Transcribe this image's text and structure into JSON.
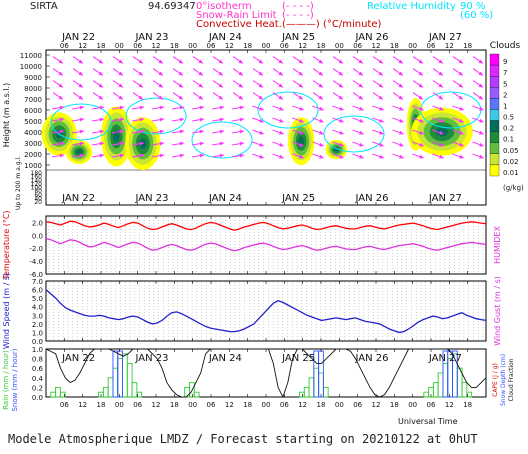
{
  "header": {
    "site": "SIRTA",
    "coords": "94.69347",
    "legend_left": [
      {
        "label": "0°isotherm",
        "sym": "(- - - -)",
        "color": "#ff33cc"
      },
      {
        "label": "Snow-Rain Limit",
        "sym": "(- - - -)",
        "color": "#ff33cc"
      },
      {
        "label": "Convective Heat.",
        "sym": "(———) (°C/minute)",
        "color": "#cc0000"
      }
    ],
    "legend_right": [
      {
        "label": "Relative Humidity",
        "value": "90 %",
        "color": "#00e5ff"
      },
      {
        "label": "",
        "value": "(60 %)",
        "color": "#00e5ff"
      }
    ],
    "clouds_title": "Clouds"
  },
  "days": [
    "JAN 22",
    "JAN 23",
    "JAN 24",
    "JAN 25",
    "JAN 26",
    "JAN 27"
  ],
  "hours": [
    "06",
    "12",
    "18",
    "00",
    "06",
    "12",
    "18",
    "00",
    "06",
    "12",
    "18",
    "00",
    "06",
    "12",
    "18",
    "00",
    "06",
    "12",
    "18",
    "00",
    "06",
    "12",
    "18"
  ],
  "footer": "Modele Atmospherique LMDZ / Forecast starting on 20210122 at 0hUT",
  "universal_time": "Universal Time",
  "chart_data": [
    {
      "type": "heatmap",
      "ylabel": "Height (m a.s.l.)",
      "ylabel2": "Up to 200 m a.g.l.",
      "yticks": [
        1000,
        2000,
        3000,
        4000,
        5000,
        6000,
        7000,
        8000,
        9000,
        10000,
        11000
      ],
      "yticks_low": [
        20,
        40,
        60,
        80,
        100,
        120,
        140,
        160,
        180
      ],
      "colorbar": {
        "title": "Clouds",
        "unit": "(g/kg)",
        "labels": [
          "0.01",
          "0.02",
          "0.05",
          "0.1",
          "0.2",
          "0.5",
          "1",
          "2",
          "5",
          "7",
          "9"
        ],
        "colors": [
          "#ffff00",
          "#c8e632",
          "#5fbf3c",
          "#1e8c3c",
          "#006e5a",
          "#3cc8e6",
          "#5a78ff",
          "#9b5aff",
          "#b43cff",
          "#dc28ff",
          "#ff00ff"
        ]
      }
    },
    {
      "type": "line",
      "ylabel": "Temperature (°C)",
      "ylabel2": "HUMIDEX",
      "yticks": [
        "2.0",
        "0.0",
        "-2.0",
        "-4.0",
        "-6.0"
      ],
      "ylim": [
        -6,
        3
      ],
      "series": [
        {
          "color": "#ff0000",
          "values": [
            2.1,
            2.0,
            1.8,
            1.6,
            1.9,
            2.2,
            2.1,
            1.8,
            1.5,
            1.3,
            1.4,
            1.6,
            1.9,
            1.7,
            1.4,
            1.2,
            1.5,
            1.8,
            2.0,
            1.9,
            1.5,
            1.1,
            0.9,
            1.0,
            1.3,
            1.6,
            1.8,
            1.6,
            1.3,
            1.0,
            0.9,
            1.1,
            1.5,
            1.8,
            2.0,
            1.9,
            1.6,
            1.3,
            1.0,
            0.8,
            1.0,
            1.3,
            1.5,
            1.7,
            1.9,
            2.0,
            1.8,
            1.5,
            1.2,
            1.0,
            1.1,
            1.3,
            1.5,
            1.6,
            1.4,
            1.1,
            0.9,
            1.0,
            1.2,
            1.4,
            1.5,
            1.3,
            1.1,
            1.0,
            1.0,
            1.2,
            1.4,
            1.5,
            1.3,
            1.1,
            1.0,
            1.2,
            1.4,
            1.6,
            1.7,
            1.8,
            1.9,
            1.7,
            1.5,
            1.2,
            1.0,
            0.9,
            1.1,
            1.3,
            1.5,
            1.7,
            1.9,
            2.0,
            2.1,
            2.0,
            1.9,
            1.8
          ]
        },
        {
          "color": "#dd33dd",
          "values": [
            -0.5,
            -0.7,
            -1.0,
            -1.3,
            -1.0,
            -0.7,
            -0.8,
            -1.1,
            -1.5,
            -1.8,
            -1.7,
            -1.4,
            -1.1,
            -1.3,
            -1.6,
            -1.9,
            -1.6,
            -1.3,
            -1.1,
            -1.2,
            -1.6,
            -2.0,
            -2.3,
            -2.2,
            -1.9,
            -1.6,
            -1.4,
            -1.6,
            -1.9,
            -2.2,
            -2.3,
            -2.1,
            -1.7,
            -1.4,
            -1.2,
            -1.3,
            -1.6,
            -1.9,
            -2.2,
            -2.4,
            -2.2,
            -1.9,
            -1.7,
            -1.5,
            -1.3,
            -1.2,
            -1.4,
            -1.7,
            -2.0,
            -2.2,
            -2.1,
            -1.9,
            -1.7,
            -1.6,
            -1.8,
            -2.1,
            -2.3,
            -2.2,
            -2.0,
            -1.8,
            -1.7,
            -1.9,
            -2.1,
            -2.2,
            -2.2,
            -2.0,
            -1.8,
            -1.7,
            -1.9,
            -2.1,
            -2.2,
            -2.0,
            -1.8,
            -1.6,
            -1.5,
            -1.4,
            -1.3,
            -1.5,
            -1.7,
            -2.0,
            -2.2,
            -2.3,
            -2.1,
            -1.9,
            -1.7,
            -1.5,
            -1.3,
            -1.2,
            -1.1,
            -1.2,
            -1.3,
            -1.4
          ]
        }
      ]
    },
    {
      "type": "line",
      "ylabel": "Wind Speed (m / s)",
      "ylabel2": "Wind Gust (m / s)",
      "yticks": [
        "7.0",
        "6.0",
        "5.0",
        "4.0",
        "3.0",
        "2.0",
        "1.0",
        "0.0"
      ],
      "ylim": [
        0,
        7
      ],
      "series": [
        {
          "color": "#2222cc",
          "values": [
            6.0,
            5.5,
            5.0,
            4.4,
            3.9,
            3.6,
            3.4,
            3.2,
            3.0,
            2.9,
            2.9,
            3.0,
            2.9,
            2.7,
            2.6,
            2.5,
            2.6,
            2.8,
            2.9,
            2.8,
            2.5,
            2.2,
            2.0,
            2.1,
            2.4,
            2.9,
            3.3,
            3.4,
            3.2,
            2.9,
            2.6,
            2.3,
            2.0,
            1.7,
            1.5,
            1.4,
            1.3,
            1.2,
            1.1,
            1.1,
            1.2,
            1.4,
            1.7,
            2.0,
            2.6,
            3.2,
            3.8,
            4.4,
            4.7,
            4.5,
            4.2,
            3.9,
            3.6,
            3.3,
            3.0,
            2.8,
            2.6,
            2.4,
            2.5,
            2.6,
            2.7,
            2.6,
            2.5,
            2.6,
            2.7,
            2.5,
            2.3,
            2.2,
            2.1,
            2.0,
            1.7,
            1.4,
            1.2,
            1.0,
            1.1,
            1.4,
            1.8,
            2.2,
            2.5,
            2.7,
            2.9,
            2.8,
            2.6,
            2.7,
            2.9,
            3.1,
            3.3,
            3.0,
            2.8,
            2.6,
            2.5,
            2.4
          ]
        }
      ]
    },
    {
      "type": "bar",
      "ylabel": "Rain (mm / hour)",
      "ylabel_snow": "Snow (mm / hour)",
      "ylabel_right": "CAPE (J / g)",
      "ylabel_right2": "Snow Depth (cm)",
      "ylabel_right3": "Cloud Fraction",
      "yticks": [
        "1.0",
        "0.8",
        "0.6",
        "0.4",
        "0.2",
        "0.0"
      ],
      "ylim": [
        0,
        1
      ],
      "rain": [
        0.0,
        0.1,
        0.2,
        0.1,
        0.0,
        0.0,
        0.0,
        0.0,
        0.0,
        0.0,
        0.0,
        0.1,
        0.2,
        0.4,
        0.6,
        0.8,
        0.9,
        0.7,
        0.3,
        0.1,
        0.0,
        0.0,
        0.0,
        0.0,
        0.0,
        0.0,
        0.0,
        0.0,
        0.0,
        0.2,
        0.3,
        0.1,
        0.0,
        0.0,
        0.0,
        0.0,
        0.0,
        0.0,
        0.0,
        0.0,
        0.0,
        0.0,
        0.0,
        0.0,
        0.0,
        0.0,
        0.0,
        0.0,
        0.0,
        0.0,
        0.0,
        0.0,
        0.0,
        0.1,
        0.2,
        0.4,
        0.6,
        0.5,
        0.2,
        0.0,
        0.0,
        0.0,
        0.0,
        0.0,
        0.0,
        0.0,
        0.0,
        0.0,
        0.0,
        0.0,
        0.0,
        0.0,
        0.0,
        0.0,
        0.0,
        0.0,
        0.0,
        0.0,
        0.0,
        0.1,
        0.2,
        0.3,
        0.5,
        0.7,
        0.8,
        0.9,
        0.6,
        0.3,
        0.1,
        0.0,
        0.0,
        0.0
      ],
      "cloud_fraction": [
        1.0,
        0.95,
        0.9,
        0.6,
        0.4,
        0.3,
        0.35,
        0.5,
        0.7,
        0.9,
        1.0,
        1.0,
        1.0,
        1.0,
        0.95,
        0.9,
        0.85,
        0.9,
        1.0,
        1.0,
        1.0,
        1.0,
        0.9,
        0.8,
        0.6,
        0.3,
        0.15,
        0.05,
        0.0,
        0.0,
        0.1,
        0.3,
        0.5,
        0.9,
        1.0,
        1.0,
        1.0,
        1.0,
        1.0,
        1.0,
        1.0,
        1.0,
        1.0,
        1.0,
        1.0,
        1.0,
        1.0,
        0.7,
        0.2,
        0.0,
        0.3,
        0.8,
        1.0,
        1.0,
        0.9,
        0.8,
        0.7,
        0.7,
        0.8,
        0.9,
        1.0,
        1.0,
        1.0,
        0.95,
        0.8,
        0.6,
        0.4,
        0.2,
        0.05,
        0.0,
        0.05,
        0.2,
        0.4,
        0.6,
        0.8,
        1.0,
        1.0,
        1.0,
        1.0,
        1.0,
        1.0,
        1.0,
        1.0,
        1.0,
        0.9,
        0.7,
        0.5,
        0.3,
        0.2,
        0.2,
        0.3,
        0.4
      ]
    }
  ]
}
